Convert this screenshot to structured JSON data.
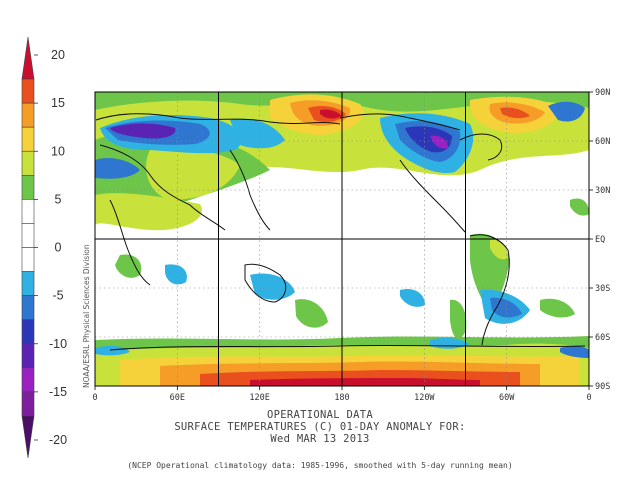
{
  "colorbar": {
    "tick_labels": [
      "20",
      "15",
      "10",
      "5",
      "0",
      "-5",
      "-10",
      "-15",
      "-20"
    ],
    "bins": [
      {
        "from": 17.5,
        "to": 20,
        "color": "#c8102e"
      },
      {
        "from": 15,
        "to": 17.5,
        "color": "#e9501e"
      },
      {
        "from": 12.5,
        "to": 15,
        "color": "#f59d27"
      },
      {
        "from": 10,
        "to": 12.5,
        "color": "#f6d23a"
      },
      {
        "from": 7.5,
        "to": 10,
        "color": "#c9e23b"
      },
      {
        "from": 5,
        "to": 7.5,
        "color": "#6dc649"
      },
      {
        "from": 2.5,
        "to": 5,
        "color": "#ffffff"
      },
      {
        "from": 0,
        "to": 2.5,
        "color": "#ffffff"
      },
      {
        "from": -2.5,
        "to": 0,
        "color": "#ffffff"
      },
      {
        "from": -5,
        "to": -2.5,
        "color": "#2fb2e3"
      },
      {
        "from": -7.5,
        "to": -5,
        "color": "#2e76d0"
      },
      {
        "from": -10,
        "to": -7.5,
        "color": "#2c36b8"
      },
      {
        "from": -12.5,
        "to": -10,
        "color": "#5b23b3"
      },
      {
        "from": -15,
        "to": -12.5,
        "color": "#9b22c2"
      },
      {
        "from": -17.5,
        "to": -15,
        "color": "#7d1f9e"
      },
      {
        "from": -20,
        "to": -17.5,
        "color": "#4b0f68"
      }
    ]
  },
  "map": {
    "lat_labels": [
      "90N",
      "60N",
      "30N",
      "EQ",
      "30S",
      "60S",
      "90S"
    ],
    "lon_labels": [
      "0",
      "60E",
      "120E",
      "180",
      "120W",
      "60W",
      "0"
    ]
  },
  "credit": "NOAA/ESRL Physical Sciences Division",
  "caption": {
    "line1": "OPERATIONAL DATA",
    "line2": "SURFACE TEMPERATURES (C)   01-DAY ANOMALY FOR:",
    "line3": "Wed MAR 13 2013",
    "footnote": "(NCEP Operational climatology data: 1985-1996, smoothed with 5-day running mean)"
  },
  "colors": {
    "strong_warm": "#c8102e",
    "warm": "#f59d27",
    "mild_warm": "#c9e23b",
    "slight_warm": "#6dc649",
    "slight_cool": "#2fb2e3",
    "cool": "#2e76d0",
    "cold": "#2c36b8",
    "very_cold": "#9b22c2"
  }
}
